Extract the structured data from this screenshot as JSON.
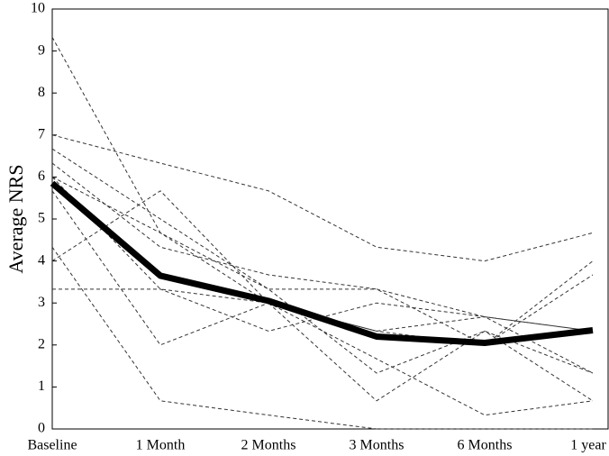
{
  "chart_data": {
    "type": "line",
    "ylabel": "Average NRS",
    "categories": [
      "Baseline",
      "1 Month",
      "2 Months",
      "3 Months",
      "6 Months",
      "1 year"
    ],
    "ylim": [
      0,
      10
    ],
    "yticks": [
      0,
      1,
      2,
      3,
      4,
      5,
      6,
      7,
      8,
      9,
      10
    ],
    "series": [
      {
        "color": "#333333",
        "line_style": "dashed",
        "width": 1,
        "values": [
          9.33,
          4.67,
          3.33,
          1.33,
          2.33,
          1.33
        ]
      },
      {
        "color": "#333333",
        "line_style": "dashed",
        "width": 1,
        "values": [
          7.0,
          6.33,
          5.67,
          4.33,
          4.0,
          4.67
        ]
      },
      {
        "color": "#333333",
        "line_style": "dashed",
        "width": 1,
        "values": [
          6.67,
          5.0,
          3.33,
          3.33,
          2.67,
          2.33
        ]
      },
      {
        "color": "#333333",
        "line_style": "dashed",
        "width": 1,
        "values": [
          6.33,
          4.33,
          3.67,
          3.33,
          2.0,
          4.0
        ]
      },
      {
        "color": "#333333",
        "line_style": "dashed",
        "width": 1,
        "values": [
          6.0,
          3.33,
          3.0,
          0.67,
          2.33,
          0.67
        ]
      },
      {
        "color": "#333333",
        "line_style": "dashed",
        "width": 1,
        "values": [
          5.67,
          2.0,
          3.0,
          2.33,
          2.67,
          2.33
        ]
      },
      {
        "color": "#333333",
        "line_style": "dashed",
        "width": 1,
        "values": [
          4.33,
          0.67,
          0.33,
          0.0,
          0.0,
          0.0
        ]
      },
      {
        "color": "#333333",
        "line_style": "dashed",
        "width": 1,
        "values": [
          4.0,
          5.67,
          3.0,
          1.67,
          0.33,
          0.67
        ]
      },
      {
        "color": "#333333",
        "line_style": "dashed",
        "width": 1,
        "values": [
          3.33,
          3.33,
          2.33,
          3.0,
          2.67,
          1.33
        ]
      },
      {
        "color": "#333333",
        "line_style": "dashed",
        "width": 1,
        "values": [
          6.0,
          4.67,
          3.0,
          2.33,
          2.0,
          3.67
        ]
      },
      {
        "color": "#000000",
        "line_style": "solid",
        "width": 7,
        "values": [
          5.85,
          3.65,
          3.05,
          2.2,
          2.05,
          2.35
        ]
      }
    ]
  }
}
